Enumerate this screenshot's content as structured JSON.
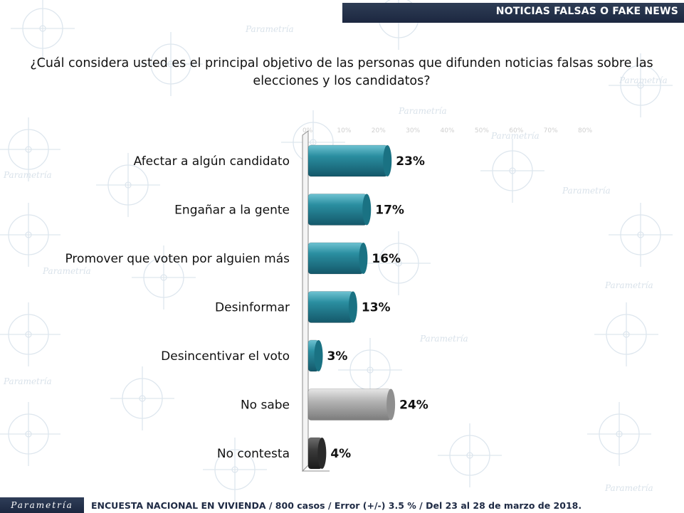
{
  "header": {
    "title": "NOTICIAS FALSAS O FAKE NEWS"
  },
  "question": "¿Cuál considera usted es el principal objetivo de las personas que difunden noticias falsas sobre las elecciones y los candidatos?",
  "footer": {
    "logo_text": "Parametría",
    "note": "ENCUESTA NACIONAL EN VIVIENDA / 800 casos / Error (+/-) 3.5 % / Del 23 al 28 de marzo de 2018."
  },
  "watermark_text": "Parametría",
  "colors": {
    "bar_teal": "#2a8ea0",
    "bar_teal_dark": "#15606e",
    "bar_gray": "#a9a9a9",
    "bar_dark": "#3a3a3a",
    "header_bg": "#1f2b45"
  },
  "chart_data": {
    "type": "bar",
    "orientation": "horizontal",
    "categories": [
      "Afectar a algún candidato",
      "Engañar a la gente",
      "Promover que voten por alguien más",
      "Desinformar",
      "Desincentivar el voto",
      "No sabe",
      "No contesta"
    ],
    "values": [
      23,
      17,
      16,
      13,
      3,
      24,
      4
    ],
    "value_labels": [
      "23%",
      "17%",
      "16%",
      "13%",
      "3%",
      "24%",
      "4%"
    ],
    "bar_colors": [
      "teal",
      "teal",
      "teal",
      "teal",
      "teal",
      "gray",
      "dark"
    ],
    "xlim": [
      0,
      80
    ],
    "x_ticks": [
      "0%",
      "10%",
      "20%",
      "30%",
      "40%",
      "50%",
      "60%",
      "70%",
      "80%"
    ],
    "grid": false
  }
}
